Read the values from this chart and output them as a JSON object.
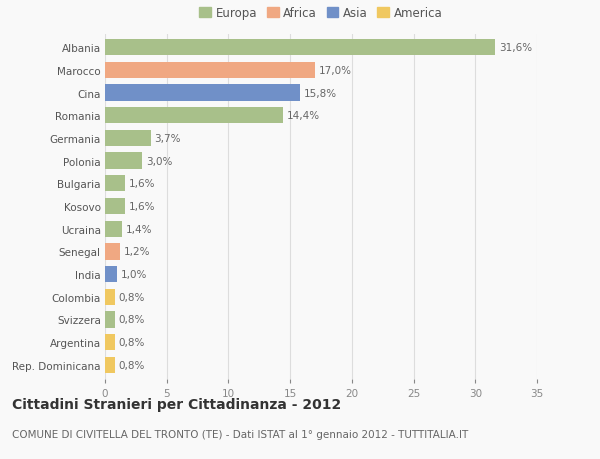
{
  "categories": [
    "Albania",
    "Marocco",
    "Cina",
    "Romania",
    "Germania",
    "Polonia",
    "Bulgaria",
    "Kosovo",
    "Ucraina",
    "Senegal",
    "India",
    "Colombia",
    "Svizzera",
    "Argentina",
    "Rep. Dominicana"
  ],
  "values": [
    31.6,
    17.0,
    15.8,
    14.4,
    3.7,
    3.0,
    1.6,
    1.6,
    1.4,
    1.2,
    1.0,
    0.8,
    0.8,
    0.8,
    0.8
  ],
  "labels": [
    "31,6%",
    "17,0%",
    "15,8%",
    "14,4%",
    "3,7%",
    "3,0%",
    "1,6%",
    "1,6%",
    "1,4%",
    "1,2%",
    "1,0%",
    "0,8%",
    "0,8%",
    "0,8%",
    "0,8%"
  ],
  "continents": [
    "Europa",
    "Africa",
    "Asia",
    "Europa",
    "Europa",
    "Europa",
    "Europa",
    "Europa",
    "Europa",
    "Africa",
    "Asia",
    "America",
    "Europa",
    "America",
    "America"
  ],
  "continent_colors": {
    "Europa": "#a8c08a",
    "Africa": "#f0a882",
    "Asia": "#7090c8",
    "America": "#f0c860"
  },
  "legend_order": [
    "Europa",
    "Africa",
    "Asia",
    "America"
  ],
  "title": "Cittadini Stranieri per Cittadinanza - 2012",
  "subtitle": "COMUNE DI CIVITELLA DEL TRONTO (TE) - Dati ISTAT al 1° gennaio 2012 - TUTTITALIA.IT",
  "xlim": [
    0,
    35
  ],
  "xticks": [
    0,
    5,
    10,
    15,
    20,
    25,
    30,
    35
  ],
  "background_color": "#f9f9f9",
  "grid_color": "#dddddd",
  "bar_height": 0.72,
  "title_fontsize": 10,
  "subtitle_fontsize": 7.5,
  "label_fontsize": 7.5,
  "tick_fontsize": 7.5,
  "legend_fontsize": 8.5
}
